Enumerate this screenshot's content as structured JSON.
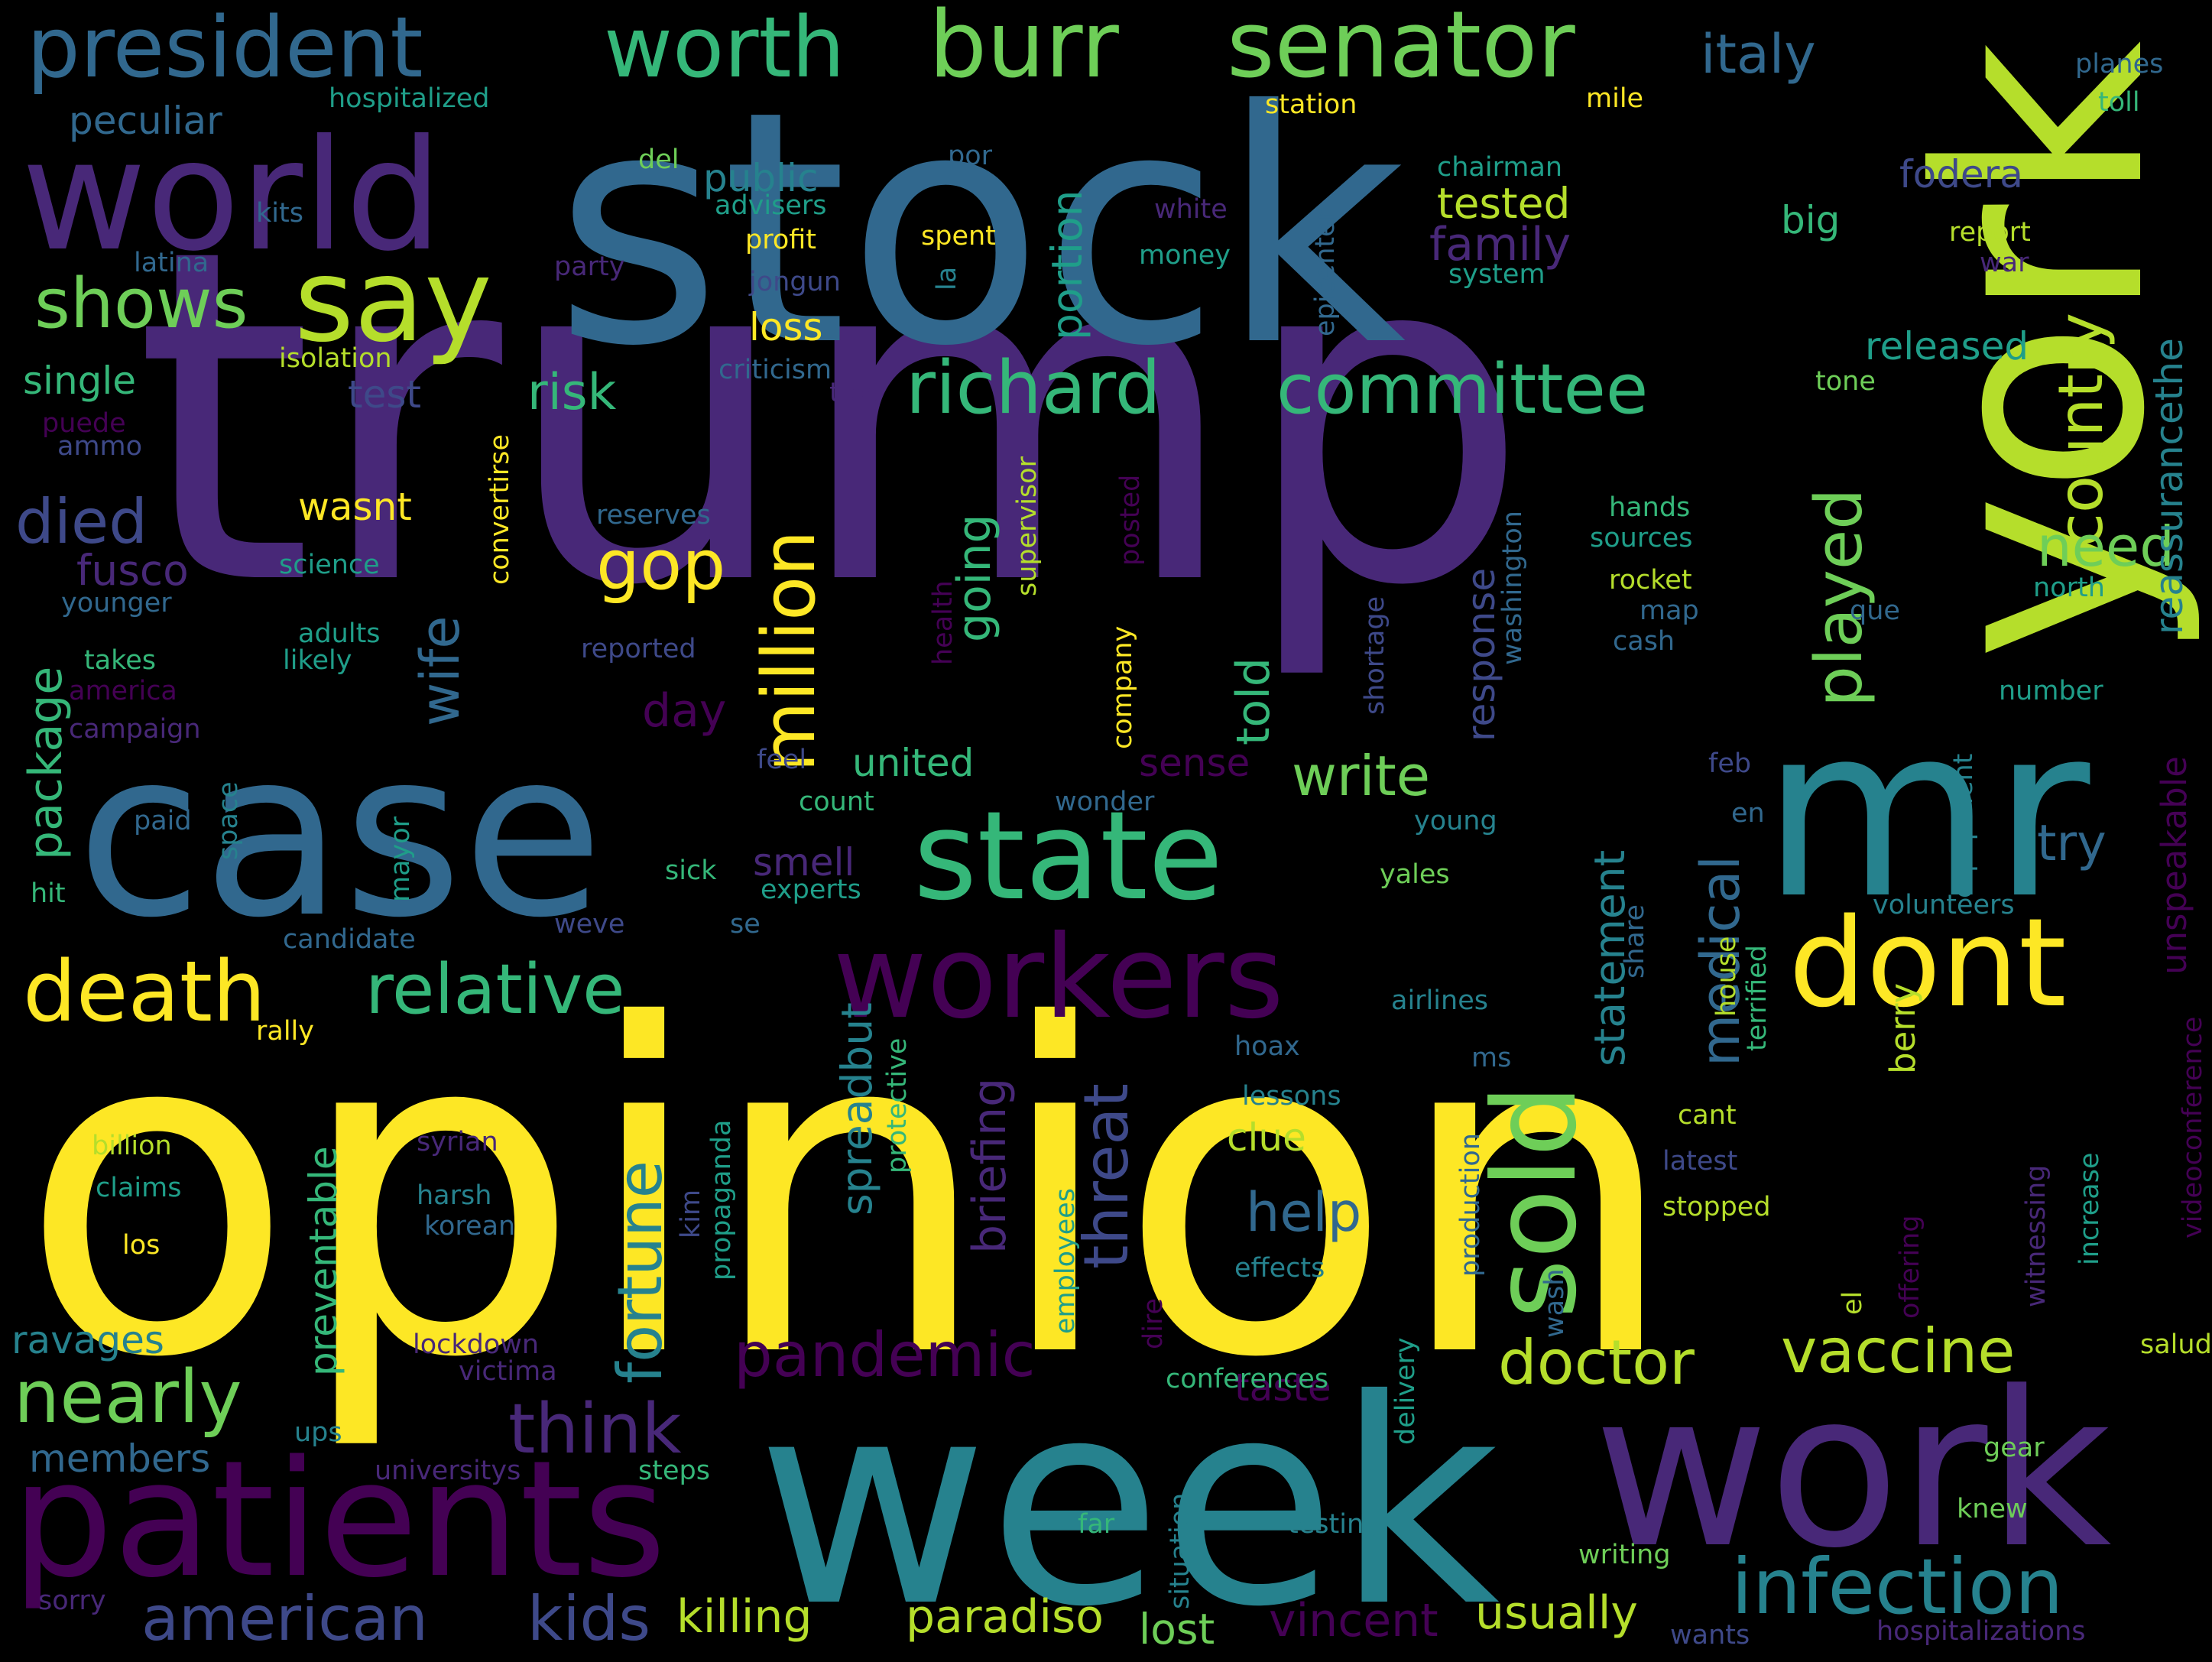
{
  "background": "#000000",
  "palette": {
    "dark-purple": "#440154",
    "purple": "#482878",
    "indigo": "#3e4989",
    "blue": "#31688e",
    "teal": "#26828e",
    "teal-green": "#1f9e89",
    "green": "#35b779",
    "light-green": "#6ece58",
    "lime": "#b5de2b",
    "yellow": "#fde725"
  },
  "words": [
    {
      "text": "trump",
      "color": "purple"
    },
    {
      "text": "stock",
      "color": "blue"
    },
    {
      "text": "opinion",
      "color": "yellow"
    },
    {
      "text": "week",
      "color": "teal"
    },
    {
      "text": "york",
      "color": "lime"
    },
    {
      "text": "mr",
      "color": "teal"
    },
    {
      "text": "case",
      "color": "blue"
    },
    {
      "text": "work",
      "color": "purple"
    },
    {
      "text": "world",
      "color": "purple"
    },
    {
      "text": "patients",
      "color": "dark-purple"
    },
    {
      "text": "workers",
      "color": "dark-purple"
    },
    {
      "text": "state",
      "color": "green"
    },
    {
      "text": "sold",
      "color": "light-green"
    },
    {
      "text": "dont",
      "color": "yellow"
    },
    {
      "text": "say",
      "color": "lime"
    },
    {
      "text": "president",
      "color": "blue"
    },
    {
      "text": "senator",
      "color": "light-green"
    },
    {
      "text": "burr",
      "color": "light-green"
    },
    {
      "text": "death",
      "color": "yellow"
    },
    {
      "text": "worth",
      "color": "green"
    },
    {
      "text": "infection",
      "color": "teal"
    },
    {
      "text": "relative",
      "color": "green"
    },
    {
      "text": "nearly",
      "color": "light-green"
    },
    {
      "text": "richard",
      "color": "green"
    },
    {
      "text": "committee",
      "color": "green"
    },
    {
      "text": "million",
      "color": "yellow"
    },
    {
      "text": "shows",
      "color": "light-green"
    },
    {
      "text": "pandemic",
      "color": "dark-purple"
    },
    {
      "text": "think",
      "color": "purple"
    },
    {
      "text": "vaccine",
      "color": "lime"
    },
    {
      "text": "doctor",
      "color": "lime"
    },
    {
      "text": "fortune",
      "color": "teal"
    },
    {
      "text": "country",
      "color": "lime"
    },
    {
      "text": "american",
      "color": "indigo"
    },
    {
      "text": "kids",
      "color": "indigo"
    },
    {
      "text": "threat",
      "color": "indigo"
    },
    {
      "text": "played",
      "color": "light-green"
    },
    {
      "text": "italy",
      "color": "blue"
    },
    {
      "text": "died",
      "color": "indigo"
    },
    {
      "text": "write",
      "color": "light-green"
    },
    {
      "text": "gop",
      "color": "yellow"
    },
    {
      "text": "medical",
      "color": "blue"
    },
    {
      "text": "need",
      "color": "light-green"
    },
    {
      "text": "going",
      "color": "green"
    },
    {
      "text": "help",
      "color": "blue"
    },
    {
      "text": "risk",
      "color": "green"
    },
    {
      "text": "package",
      "color": "green"
    },
    {
      "text": "briefing",
      "color": "purple"
    },
    {
      "text": "killing",
      "color": "lime"
    },
    {
      "text": "paradiso",
      "color": "lime"
    },
    {
      "text": "usually",
      "color": "lime"
    },
    {
      "text": "wife",
      "color": "blue"
    },
    {
      "text": "statement",
      "color": "teal"
    },
    {
      "text": "vincent",
      "color": "dark-purple"
    },
    {
      "text": "lost",
      "color": "light-green"
    },
    {
      "text": "tested",
      "color": "lime"
    },
    {
      "text": "try",
      "color": "blue"
    },
    {
      "text": "family",
      "color": "purple"
    },
    {
      "text": "told",
      "color": "green"
    },
    {
      "text": "response",
      "color": "indigo"
    },
    {
      "text": "spreadbut",
      "color": "teal"
    },
    {
      "text": "reassurancethe",
      "color": "teal"
    },
    {
      "text": "united",
      "color": "green"
    },
    {
      "text": "day",
      "color": "dark-purple"
    },
    {
      "text": "public",
      "color": "teal"
    },
    {
      "text": "released",
      "color": "teal-green"
    },
    {
      "text": "fusco",
      "color": "purple"
    },
    {
      "text": "ravages",
      "color": "teal"
    },
    {
      "text": "members",
      "color": "blue"
    },
    {
      "text": "clue",
      "color": "lime"
    },
    {
      "text": "taste",
      "color": "dark-purple"
    },
    {
      "text": "fodera",
      "color": "indigo"
    },
    {
      "text": "single",
      "color": "green"
    },
    {
      "text": "test",
      "color": "indigo"
    },
    {
      "text": "wasnt",
      "color": "yellow"
    },
    {
      "text": "smell",
      "color": "purple"
    },
    {
      "text": "berry",
      "color": "lime"
    },
    {
      "text": "big",
      "color": "green"
    },
    {
      "text": "portion",
      "color": "teal-green"
    },
    {
      "text": "sense",
      "color": "dark-purple"
    },
    {
      "text": "loss",
      "color": "yellow"
    },
    {
      "text": "preventable",
      "color": "green"
    },
    {
      "text": "peculiar",
      "color": "blue"
    },
    {
      "text": "unspeakable",
      "color": "dark-purple"
    },
    {
      "text": "hospitalized",
      "color": "teal-green"
    },
    {
      "text": "advisers",
      "color": "teal-green"
    },
    {
      "text": "profit",
      "color": "yellow"
    },
    {
      "text": "spent",
      "color": "yellow"
    },
    {
      "text": "money",
      "color": "teal-green"
    },
    {
      "text": "station",
      "color": "yellow"
    },
    {
      "text": "mile",
      "color": "yellow"
    },
    {
      "text": "planes",
      "color": "blue"
    },
    {
      "text": "toll",
      "color": "green"
    },
    {
      "text": "chairman",
      "color": "teal-green"
    },
    {
      "text": "del",
      "color": "light-green"
    },
    {
      "text": "por",
      "color": "blue"
    },
    {
      "text": "white",
      "color": "purple"
    },
    {
      "text": "kits",
      "color": "blue"
    },
    {
      "text": "latina",
      "color": "blue"
    },
    {
      "text": "party",
      "color": "purple"
    },
    {
      "text": "jongun",
      "color": "indigo"
    },
    {
      "text": "la",
      "color": "teal"
    },
    {
      "text": "epicenter",
      "color": "blue"
    },
    {
      "text": "system",
      "color": "teal-green"
    },
    {
      "text": "report",
      "color": "lime"
    },
    {
      "text": "war",
      "color": "purple"
    },
    {
      "text": "isolation",
      "color": "lime"
    },
    {
      "text": "criticism",
      "color": "blue"
    },
    {
      "text": "tips",
      "color": "purple"
    },
    {
      "text": "tone",
      "color": "light-green"
    },
    {
      "text": "puede",
      "color": "dark-purple"
    },
    {
      "text": "ammo",
      "color": "indigo"
    },
    {
      "text": "convertirse",
      "color": "yellow"
    },
    {
      "text": "reserves",
      "color": "blue"
    },
    {
      "text": "science",
      "color": "teal-green"
    },
    {
      "text": "adults",
      "color": "teal-green"
    },
    {
      "text": "likely",
      "color": "teal-green"
    },
    {
      "text": "supervisor",
      "color": "lime"
    },
    {
      "text": "health",
      "color": "dark-purple"
    },
    {
      "text": "posted",
      "color": "dark-purple"
    },
    {
      "text": "washington",
      "color": "blue"
    },
    {
      "text": "hands",
      "color": "green"
    },
    {
      "text": "sources",
      "color": "teal-green"
    },
    {
      "text": "rocket",
      "color": "lime"
    },
    {
      "text": "map",
      "color": "blue"
    },
    {
      "text": "cash",
      "color": "blue"
    },
    {
      "text": "que",
      "color": "blue"
    },
    {
      "text": "north",
      "color": "teal-green"
    },
    {
      "text": "younger",
      "color": "blue"
    },
    {
      "text": "takes",
      "color": "green"
    },
    {
      "text": "america",
      "color": "dark-purple"
    },
    {
      "text": "campaign",
      "color": "purple"
    },
    {
      "text": "reported",
      "color": "indigo"
    },
    {
      "text": "shortage",
      "color": "indigo"
    },
    {
      "text": "company",
      "color": "yellow"
    },
    {
      "text": "number",
      "color": "teal-green"
    },
    {
      "text": "feel",
      "color": "indigo"
    },
    {
      "text": "count",
      "color": "green"
    },
    {
      "text": "wonder",
      "color": "blue"
    },
    {
      "text": "feb",
      "color": "indigo"
    },
    {
      "text": "en",
      "color": "blue"
    },
    {
      "text": "young",
      "color": "teal"
    },
    {
      "text": "equipment",
      "color": "teal"
    },
    {
      "text": "paid",
      "color": "blue"
    },
    {
      "text": "space",
      "color": "teal"
    },
    {
      "text": "hit",
      "color": "green"
    },
    {
      "text": "mayor",
      "color": "teal-green"
    },
    {
      "text": "sick",
      "color": "green"
    },
    {
      "text": "experts",
      "color": "teal-green"
    },
    {
      "text": "yales",
      "color": "light-green"
    },
    {
      "text": "candidate",
      "color": "blue"
    },
    {
      "text": "weve",
      "color": "indigo"
    },
    {
      "text": "se",
      "color": "blue"
    },
    {
      "text": "share",
      "color": "blue"
    },
    {
      "text": "volunteers",
      "color": "teal"
    },
    {
      "text": "house",
      "color": "lime"
    },
    {
      "text": "terrified",
      "color": "green"
    },
    {
      "text": "airlines",
      "color": "teal"
    },
    {
      "text": "rally",
      "color": "yellow"
    },
    {
      "text": "protective",
      "color": "green"
    },
    {
      "text": "hoax",
      "color": "blue"
    },
    {
      "text": "ms",
      "color": "blue"
    },
    {
      "text": "lessons",
      "color": "teal"
    },
    {
      "text": "videoconference",
      "color": "dark-purple"
    },
    {
      "text": "billion",
      "color": "lime"
    },
    {
      "text": "syrian",
      "color": "purple"
    },
    {
      "text": "cant",
      "color": "lime"
    },
    {
      "text": "claims",
      "color": "teal-green"
    },
    {
      "text": "harsh",
      "color": "teal"
    },
    {
      "text": "korean",
      "color": "blue"
    },
    {
      "text": "propaganda",
      "color": "teal-green"
    },
    {
      "text": "kim",
      "color": "indigo"
    },
    {
      "text": "employees",
      "color": "teal-green"
    },
    {
      "text": "production",
      "color": "blue"
    },
    {
      "text": "latest",
      "color": "indigo"
    },
    {
      "text": "stopped",
      "color": "lime"
    },
    {
      "text": "witnessing",
      "color": "purple"
    },
    {
      "text": "increase",
      "color": "teal-green"
    },
    {
      "text": "los",
      "color": "yellow"
    },
    {
      "text": "effects",
      "color": "teal"
    },
    {
      "text": "dire",
      "color": "dark-purple"
    },
    {
      "text": "wash",
      "color": "blue"
    },
    {
      "text": "el",
      "color": "lime"
    },
    {
      "text": "offering",
      "color": "dark-purple"
    },
    {
      "text": "lockdown",
      "color": "purple"
    },
    {
      "text": "victima",
      "color": "purple"
    },
    {
      "text": "conferences",
      "color": "green"
    },
    {
      "text": "delivery",
      "color": "teal-green"
    },
    {
      "text": "salud",
      "color": "lime"
    },
    {
      "text": "ups",
      "color": "teal"
    },
    {
      "text": "universitys",
      "color": "purple"
    },
    {
      "text": "steps",
      "color": "green"
    },
    {
      "text": "situation",
      "color": "teal"
    },
    {
      "text": "gear",
      "color": "light-green"
    },
    {
      "text": "far",
      "color": "green"
    },
    {
      "text": "testing",
      "color": "teal"
    },
    {
      "text": "knew",
      "color": "light-green"
    },
    {
      "text": "writing",
      "color": "light-green"
    },
    {
      "text": "sorry",
      "color": "purple"
    },
    {
      "text": "wants",
      "color": "indigo"
    },
    {
      "text": "hospitalizations",
      "color": "purple"
    }
  ]
}
